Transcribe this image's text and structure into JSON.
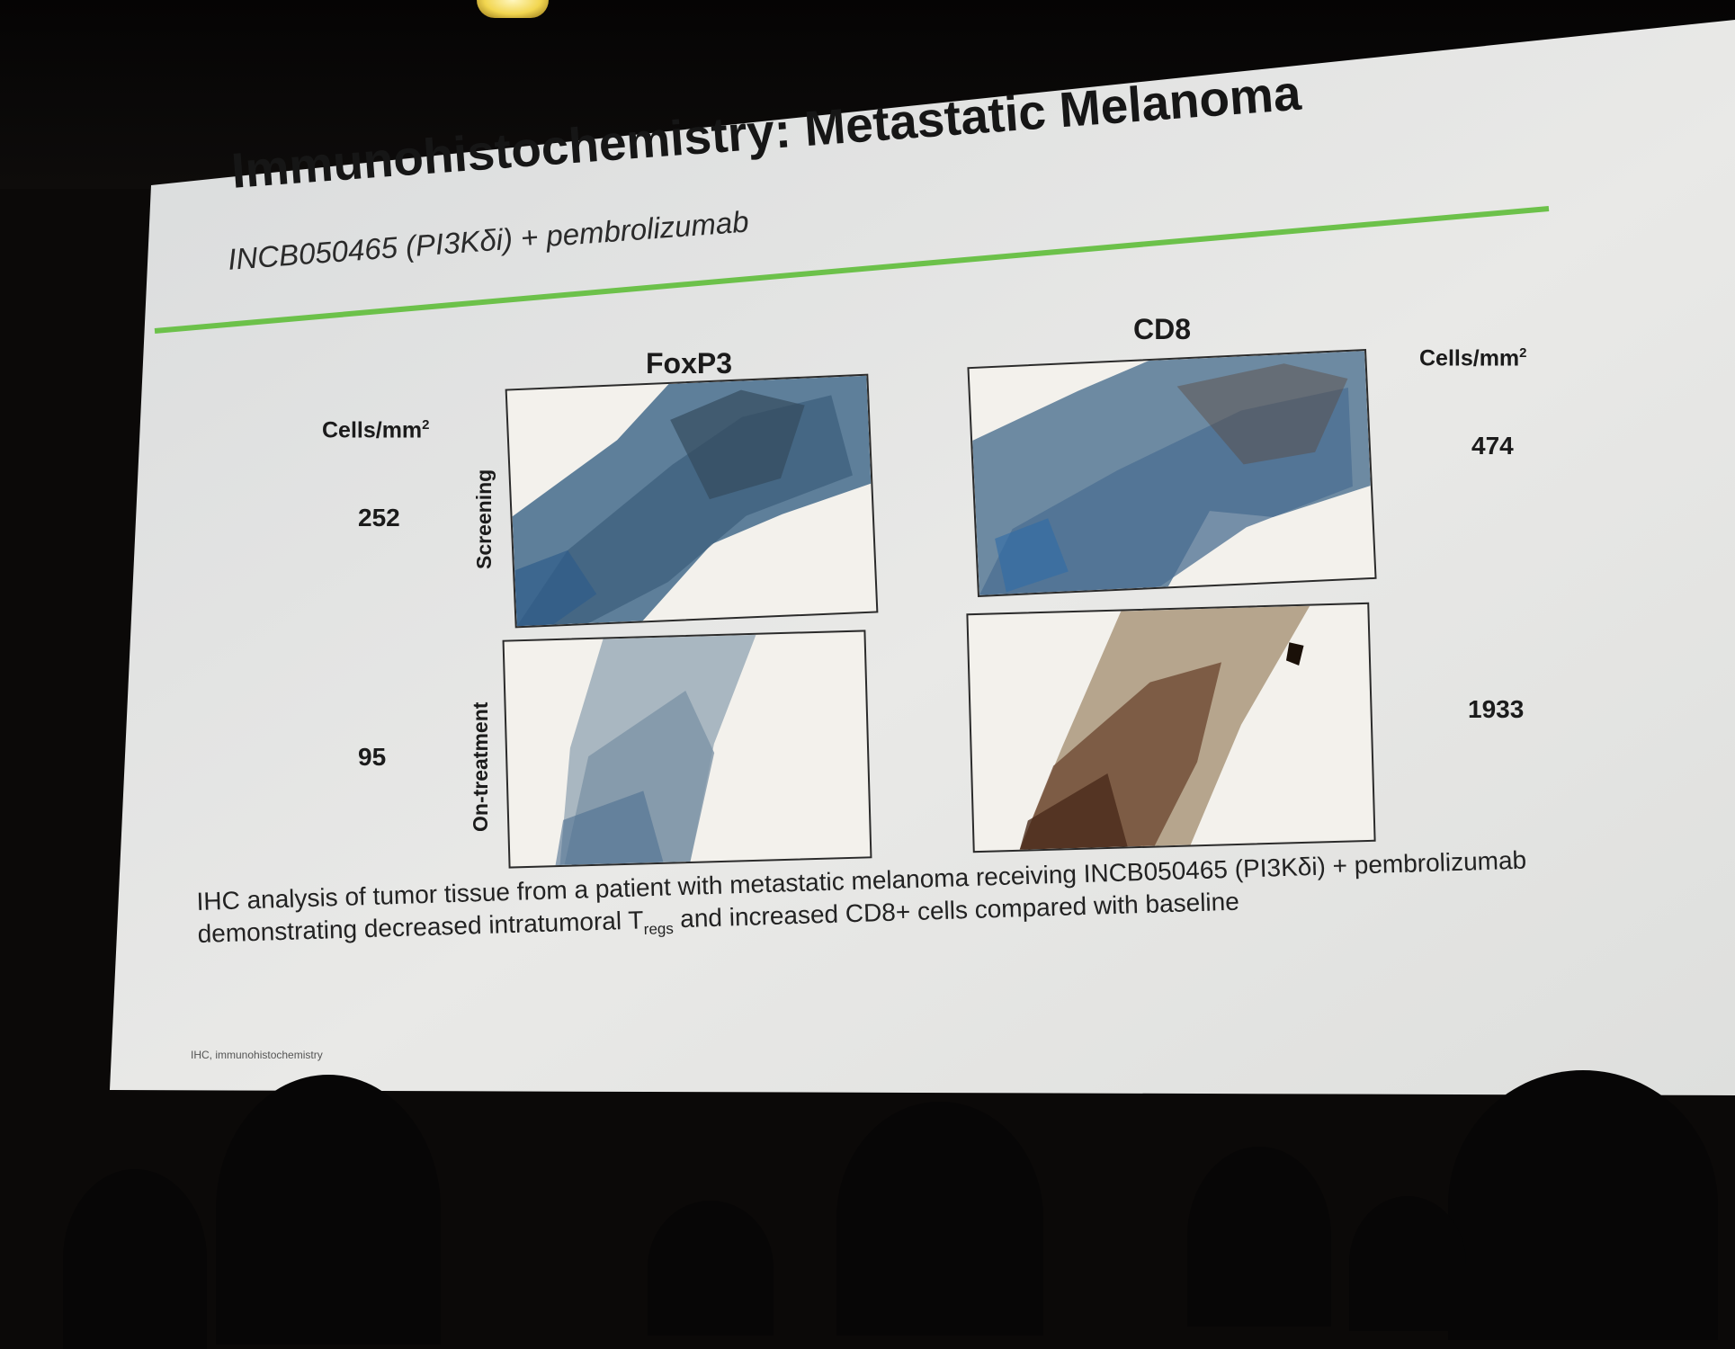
{
  "slide": {
    "title": "Immunohistochemistry: Metastatic Melanoma",
    "subtitle": "INCB050465 (PI3Kδi) + pembrolizumab",
    "accent_color": "#6cc14a",
    "panels": {
      "foxp3": {
        "header": "FoxP3",
        "units": "Cells/mm",
        "units_exp": "2",
        "screening_value": "252",
        "treatment_value": "95"
      },
      "cd8": {
        "header": "CD8",
        "units": "Cells/mm",
        "units_exp": "2",
        "screening_value": "474",
        "treatment_value": "1933"
      }
    },
    "row_labels": {
      "screening": "Screening",
      "treatment": "On-treatment"
    },
    "caption": {
      "line1": "IHC analysis of tumor tissue from a patient with metastatic melanoma receiving INCB050465 (PI3Kδi) + pembrolizumab",
      "line2_pre": "demonstrating decreased intratumoral T",
      "line2_sub": "regs",
      "line2_post": " and increased CD8+ cells compared with baseline"
    },
    "footnote": "IHC, immunohistochemistry"
  }
}
